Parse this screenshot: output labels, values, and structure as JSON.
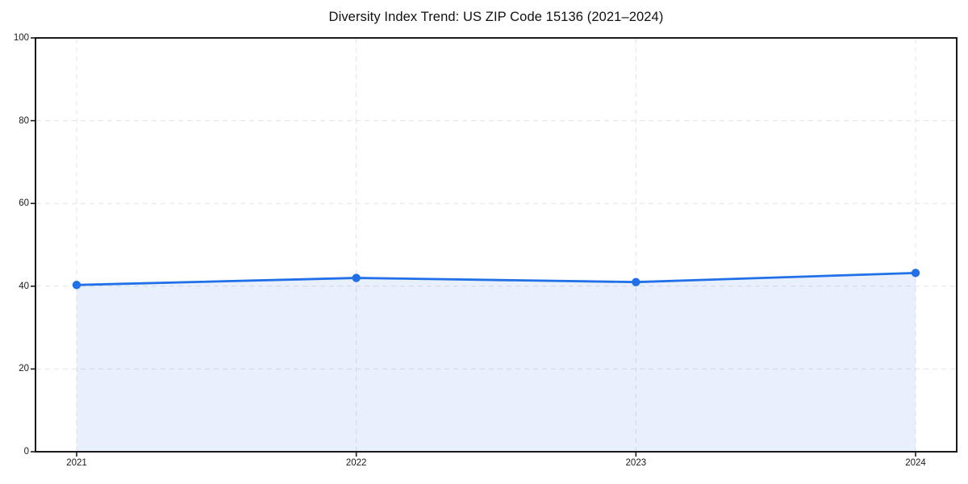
{
  "chart_data": {
    "type": "area",
    "title": "Diversity Index Trend: US ZIP Code 15136 (2021–2024)",
    "categories": [
      "2021",
      "2022",
      "2023",
      "2024"
    ],
    "values": [
      40.3,
      42.0,
      41.0,
      43.2
    ],
    "xlabel": "",
    "ylabel": "",
    "ylim": [
      0,
      100
    ],
    "yticks": [
      0,
      20,
      40,
      60,
      80,
      100
    ],
    "grid": true,
    "grid_style": "dashed",
    "legend": false,
    "line_color": "#2170e8",
    "fill_opacity": 0.1,
    "marker": "circle",
    "frame_color": "#1a1a1a",
    "background_color": "#ffffff"
  }
}
